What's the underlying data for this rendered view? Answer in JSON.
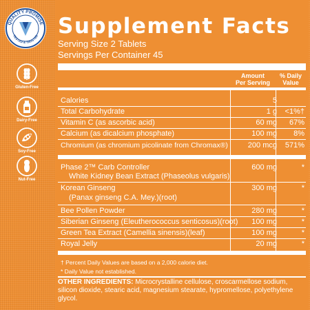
{
  "badge": {
    "top_text": "QUALITY PROMISE",
    "bottom_text": "TESTED & TRUSTED"
  },
  "icons": [
    {
      "name": "wheat-icon",
      "label": "Gluten-Free"
    },
    {
      "name": "milk-bottle-icon",
      "label": "Dairy-Free"
    },
    {
      "name": "soy-icon",
      "label": "Soy-Free"
    },
    {
      "name": "peanut-icon",
      "label": "Nut-Free"
    }
  ],
  "facts": {
    "title": "Supplement Facts",
    "serving_size": "Serving Size 2 Tablets",
    "servings_per_container": "Servings Per Container 45",
    "col_amount": "Amount Per Serving",
    "col_amount_l1": "Amount",
    "col_amount_l2": "Per Serving",
    "col_dv_l1": "% Daily",
    "col_dv_l2": "Value",
    "rows": [
      {
        "name": "Calories",
        "amount": "5",
        "dv": ""
      },
      {
        "name": "Total Carbohydrate",
        "amount": "1 g",
        "dv": "<1%†"
      },
      {
        "name": "Vitamin C (as ascorbic acid)",
        "amount": "60 mg",
        "dv": "67%"
      },
      {
        "name": "Calcium (as dicalcium phosphate)",
        "amount": "100 mg",
        "dv": "8%"
      },
      {
        "name": "Chromium (as chromium picolinate from Chromax®)",
        "amount": "200 mcg",
        "dv": "571%"
      },
      {
        "name": "Phase 2™ Carb Controller",
        "sub": "White Kidney Bean Extract (Phaseolus vulgaris)",
        "amount": "600 mg",
        "dv": "*"
      },
      {
        "name": "Korean Ginseng",
        "sub": "(Panax ginseng C.A. Mey.)(root)",
        "amount": "300 mg",
        "dv": "*"
      },
      {
        "name": "Bee Pollen Powder",
        "amount": "280 mg",
        "dv": "*"
      },
      {
        "name": "Siberian Ginseng (Eleutherococcus senticosus)(root)",
        "amount": "100 mg",
        "dv": "*"
      },
      {
        "name": "Green Tea Extract (Camellia sinensis)(leaf)",
        "amount": "100 mg",
        "dv": "*"
      },
      {
        "name": "Royal Jelly",
        "amount": "20 mg",
        "dv": "*"
      }
    ],
    "footnote_1": "† Percent Daily Values are based on a 2,000 calorie diet.",
    "footnote_2": "* Daily Value not established.",
    "other_label": "OTHER INGREDIENTS:",
    "other_text": "Microcrystalline cellulose, croscarmellose sodium, silicon dioxide, stearic acid, magnesium stearate, hypromellose, polyethylene glycol."
  }
}
